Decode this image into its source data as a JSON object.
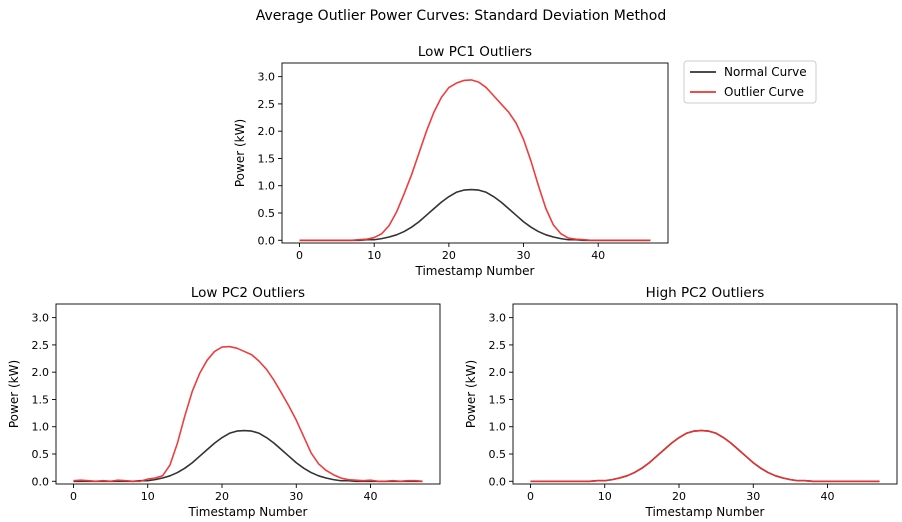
{
  "figure": {
    "suptitle": "Average Outlier Power Curves: Standard Deviation Method",
    "colors": {
      "normal": "#333333",
      "outlier": "#ee3333",
      "axis": "#000000",
      "background": "#ffffff"
    }
  },
  "legend": {
    "placement": "right of top panel",
    "entries": [
      "Normal Curve",
      "Outlier Curve"
    ]
  },
  "chart_data": [
    {
      "type": "line",
      "title": "Low PC1 Outliers",
      "xlabel": "Timestamp Number",
      "ylabel": "Power (kW)",
      "xlim": [
        -2.35,
        49.35
      ],
      "ylim": [
        -0.05,
        3.25
      ],
      "xticks": [
        0,
        10,
        20,
        30,
        40
      ],
      "yticks": [
        0.0,
        0.5,
        1.0,
        1.5,
        2.0,
        2.5,
        3.0
      ],
      "ytick_labels": [
        "0.0",
        "0.5",
        "1.0",
        "1.5",
        "2.0",
        "2.5",
        "3.0"
      ],
      "grid": false,
      "series": [
        {
          "name": "Normal Curve",
          "color": "#333333",
          "x": [
            0,
            1,
            2,
            3,
            4,
            5,
            6,
            7,
            8,
            9,
            10,
            11,
            12,
            13,
            14,
            15,
            16,
            17,
            18,
            19,
            20,
            21,
            22,
            23,
            24,
            25,
            26,
            27,
            28,
            29,
            30,
            31,
            32,
            33,
            34,
            35,
            36,
            37,
            38,
            39,
            40,
            41,
            42,
            43,
            44,
            45,
            46,
            47
          ],
          "y": [
            0.0,
            0.0,
            0.0,
            0.0,
            0.0,
            0.0,
            0.0,
            0.0,
            0.0,
            0.01,
            0.01,
            0.03,
            0.06,
            0.1,
            0.16,
            0.24,
            0.34,
            0.46,
            0.58,
            0.7,
            0.8,
            0.88,
            0.92,
            0.93,
            0.92,
            0.88,
            0.8,
            0.7,
            0.58,
            0.46,
            0.34,
            0.24,
            0.16,
            0.1,
            0.06,
            0.03,
            0.01,
            0.01,
            0.0,
            0.0,
            0.0,
            0.0,
            0.0,
            0.0,
            0.0,
            0.0,
            0.0,
            0.0
          ]
        },
        {
          "name": "Outlier Curve",
          "color": "#ee3333",
          "x": [
            0,
            1,
            2,
            3,
            4,
            5,
            6,
            7,
            8,
            9,
            10,
            11,
            12,
            13,
            14,
            15,
            16,
            17,
            18,
            19,
            20,
            21,
            22,
            23,
            24,
            25,
            26,
            27,
            28,
            29,
            30,
            31,
            32,
            33,
            34,
            35,
            36,
            37,
            38,
            39,
            40,
            41,
            42,
            43,
            44,
            45,
            46,
            47
          ],
          "y": [
            0.0,
            0.0,
            0.0,
            0.0,
            0.0,
            0.0,
            0.0,
            0.0,
            0.01,
            0.02,
            0.05,
            0.12,
            0.27,
            0.52,
            0.85,
            1.2,
            1.6,
            2.0,
            2.35,
            2.62,
            2.8,
            2.88,
            2.93,
            2.94,
            2.9,
            2.8,
            2.65,
            2.5,
            2.35,
            2.15,
            1.85,
            1.45,
            1.0,
            0.58,
            0.28,
            0.12,
            0.04,
            0.02,
            0.01,
            0.0,
            0.0,
            0.0,
            0.0,
            0.0,
            0.0,
            0.0,
            0.0,
            0.0
          ]
        }
      ]
    },
    {
      "type": "line",
      "title": "Low PC2 Outliers",
      "xlabel": "Timestamp Number",
      "ylabel": "Power (kW)",
      "xlim": [
        -2.35,
        49.35
      ],
      "ylim": [
        -0.05,
        3.25
      ],
      "xticks": [
        0,
        10,
        20,
        30,
        40
      ],
      "yticks": [
        0.0,
        0.5,
        1.0,
        1.5,
        2.0,
        2.5,
        3.0
      ],
      "ytick_labels": [
        "0.0",
        "0.5",
        "1.0",
        "1.5",
        "2.0",
        "2.5",
        "3.0"
      ],
      "grid": false,
      "series": [
        {
          "name": "Normal Curve",
          "color": "#333333",
          "x": [
            0,
            1,
            2,
            3,
            4,
            5,
            6,
            7,
            8,
            9,
            10,
            11,
            12,
            13,
            14,
            15,
            16,
            17,
            18,
            19,
            20,
            21,
            22,
            23,
            24,
            25,
            26,
            27,
            28,
            29,
            30,
            31,
            32,
            33,
            34,
            35,
            36,
            37,
            38,
            39,
            40,
            41,
            42,
            43,
            44,
            45,
            46,
            47
          ],
          "y": [
            0.0,
            0.0,
            0.0,
            0.0,
            0.0,
            0.0,
            0.0,
            0.0,
            0.0,
            0.01,
            0.01,
            0.03,
            0.06,
            0.1,
            0.16,
            0.24,
            0.34,
            0.46,
            0.58,
            0.7,
            0.8,
            0.88,
            0.92,
            0.93,
            0.92,
            0.88,
            0.8,
            0.7,
            0.58,
            0.46,
            0.34,
            0.24,
            0.16,
            0.1,
            0.06,
            0.03,
            0.01,
            0.01,
            0.0,
            0.0,
            0.0,
            0.0,
            0.0,
            0.0,
            0.0,
            0.0,
            0.0,
            0.0
          ]
        },
        {
          "name": "Outlier Curve",
          "color": "#ee3333",
          "x": [
            0,
            1,
            2,
            3,
            4,
            5,
            6,
            7,
            8,
            9,
            10,
            11,
            12,
            13,
            14,
            15,
            16,
            17,
            18,
            19,
            20,
            21,
            22,
            23,
            24,
            25,
            26,
            27,
            28,
            29,
            30,
            31,
            32,
            33,
            34,
            35,
            36,
            37,
            38,
            39,
            40,
            41,
            42,
            43,
            44,
            45,
            46,
            47
          ],
          "y": [
            0.01,
            0.02,
            0.01,
            0.0,
            0.01,
            0.0,
            0.02,
            0.01,
            0.0,
            0.0,
            0.04,
            0.06,
            0.1,
            0.3,
            0.7,
            1.2,
            1.65,
            1.98,
            2.22,
            2.38,
            2.46,
            2.47,
            2.44,
            2.38,
            2.32,
            2.2,
            2.05,
            1.85,
            1.62,
            1.38,
            1.12,
            0.82,
            0.52,
            0.32,
            0.2,
            0.12,
            0.06,
            0.03,
            0.02,
            0.01,
            0.02,
            0.0,
            0.0,
            0.01,
            0.0,
            0.01,
            0.01,
            0.0
          ]
        }
      ]
    },
    {
      "type": "line",
      "title": "High PC2 Outliers",
      "xlabel": "Timestamp Number",
      "ylabel": "Power (kW)",
      "xlim": [
        -2.35,
        49.35
      ],
      "ylim": [
        -0.05,
        3.25
      ],
      "xticks": [
        0,
        10,
        20,
        30,
        40
      ],
      "yticks": [
        0.0,
        0.5,
        1.0,
        1.5,
        2.0,
        2.5,
        3.0
      ],
      "ytick_labels": [
        "0.0",
        "0.5",
        "1.0",
        "1.5",
        "2.0",
        "2.5",
        "3.0"
      ],
      "grid": false,
      "series": [
        {
          "name": "Normal Curve",
          "color": "#333333",
          "x": [
            0,
            1,
            2,
            3,
            4,
            5,
            6,
            7,
            8,
            9,
            10,
            11,
            12,
            13,
            14,
            15,
            16,
            17,
            18,
            19,
            20,
            21,
            22,
            23,
            24,
            25,
            26,
            27,
            28,
            29,
            30,
            31,
            32,
            33,
            34,
            35,
            36,
            37,
            38,
            39,
            40,
            41,
            42,
            43,
            44,
            45,
            46,
            47
          ],
          "y": [
            0.0,
            0.0,
            0.0,
            0.0,
            0.0,
            0.0,
            0.0,
            0.0,
            0.0,
            0.01,
            0.01,
            0.03,
            0.06,
            0.1,
            0.16,
            0.24,
            0.34,
            0.46,
            0.58,
            0.7,
            0.8,
            0.88,
            0.92,
            0.93,
            0.92,
            0.88,
            0.8,
            0.7,
            0.58,
            0.46,
            0.34,
            0.24,
            0.16,
            0.1,
            0.06,
            0.03,
            0.01,
            0.01,
            0.0,
            0.0,
            0.0,
            0.0,
            0.0,
            0.0,
            0.0,
            0.0,
            0.0,
            0.0
          ]
        },
        {
          "name": "Outlier Curve",
          "color": "#ee3333",
          "x": [
            0,
            1,
            2,
            3,
            4,
            5,
            6,
            7,
            8,
            9,
            10,
            11,
            12,
            13,
            14,
            15,
            16,
            17,
            18,
            19,
            20,
            21,
            22,
            23,
            24,
            25,
            26,
            27,
            28,
            29,
            30,
            31,
            32,
            33,
            34,
            35,
            36,
            37,
            38,
            39,
            40,
            41,
            42,
            43,
            44,
            45,
            46,
            47
          ],
          "y": [
            0.0,
            0.0,
            0.0,
            0.0,
            0.0,
            0.0,
            0.0,
            0.0,
            0.0,
            0.01,
            0.01,
            0.03,
            0.06,
            0.1,
            0.16,
            0.24,
            0.34,
            0.46,
            0.58,
            0.7,
            0.8,
            0.88,
            0.92,
            0.93,
            0.92,
            0.88,
            0.8,
            0.7,
            0.58,
            0.46,
            0.34,
            0.24,
            0.16,
            0.1,
            0.06,
            0.03,
            0.01,
            0.01,
            0.0,
            0.0,
            0.0,
            0.0,
            0.0,
            0.0,
            0.0,
            0.0,
            0.0,
            0.0
          ]
        }
      ]
    }
  ]
}
